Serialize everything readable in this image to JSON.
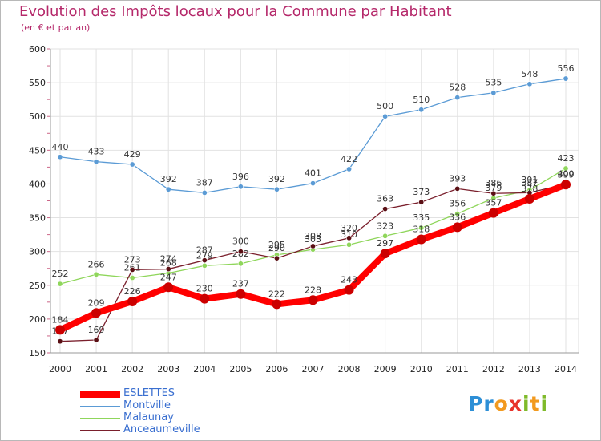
{
  "title": "Evolution des Impôts locaux pour la Commune par Habitant",
  "subtitle": "(en € et par an)",
  "logo": {
    "letters": [
      "P",
      "r",
      "o",
      "x",
      "i",
      "t",
      "i"
    ],
    "colors": [
      "#2d8fd6",
      "#2d8fd6",
      "#f29a1f",
      "#e8332b",
      "#7fba2a",
      "#f29a1f",
      "#7fba2a"
    ]
  },
  "chart_data": {
    "type": "line",
    "x": [
      "2000",
      "2001",
      "2002",
      "2003",
      "2004",
      "2005",
      "2006",
      "2007",
      "2008",
      "2009",
      "2010",
      "2011",
      "2012",
      "2013",
      "2014"
    ],
    "ylim": [
      150,
      600
    ],
    "yticks": [
      150,
      200,
      250,
      300,
      350,
      400,
      450,
      500,
      550,
      600
    ],
    "grid": true,
    "legend_position": "bottom-left",
    "series": [
      {
        "name": "Montville",
        "color": "#5b9bd5",
        "marker": "#5b9bd5",
        "values": [
          440,
          433,
          429,
          392,
          387,
          396,
          392,
          401,
          422,
          500,
          510,
          528,
          535,
          548,
          556
        ]
      },
      {
        "name": "Malaunay",
        "color": "#8fd65b",
        "marker": "#8fd65b",
        "values": [
          252,
          266,
          261,
          268,
          279,
          282,
          295,
          303,
          310,
          323,
          335,
          356,
          379,
          391,
          423
        ]
      },
      {
        "name": "Anceaumeville",
        "color": "#7a1f2c",
        "marker": "#5a0f14",
        "values": [
          167,
          169,
          273,
          274,
          287,
          300,
          290,
          308,
          320,
          363,
          373,
          393,
          386,
          387,
          400
        ]
      },
      {
        "name": "ESLETTES",
        "color": "#ff0000",
        "marker": "#cc0000",
        "values": [
          184,
          209,
          226,
          247,
          230,
          237,
          222,
          228,
          243,
          297,
          318,
          336,
          357,
          378,
          399
        ]
      }
    ]
  }
}
